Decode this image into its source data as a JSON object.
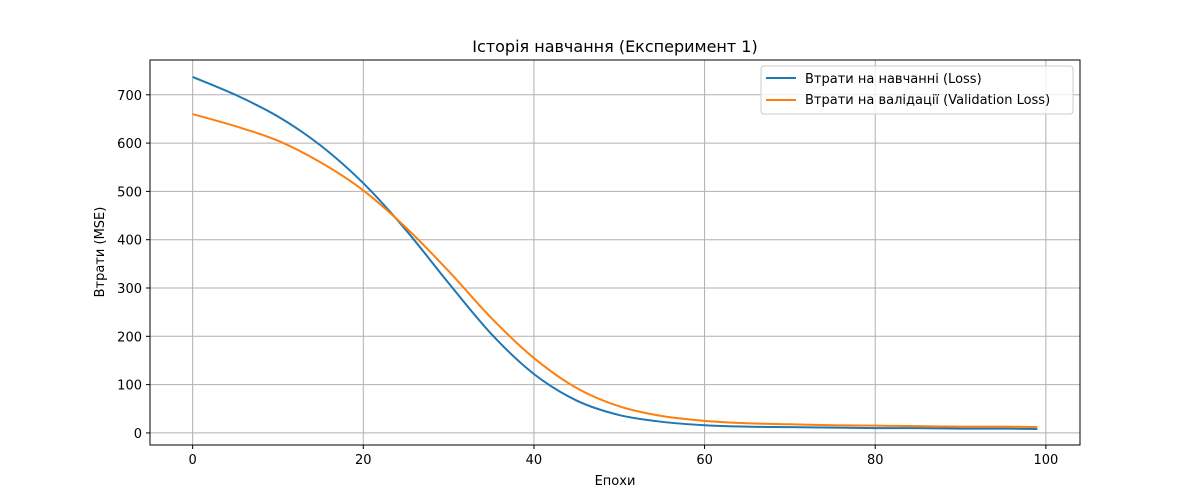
{
  "chart_data": {
    "type": "line",
    "title": "Історія навчання (Експеримент 1)",
    "xlabel": "Епохи",
    "ylabel": "Втрати (MSE)",
    "xlim": [
      -5,
      104
    ],
    "ylim": [
      -25,
      772
    ],
    "xticks": [
      0,
      20,
      40,
      60,
      80,
      100
    ],
    "yticks": [
      0,
      100,
      200,
      300,
      400,
      500,
      600,
      700
    ],
    "grid": true,
    "legend_position": "top-right",
    "x": [
      0,
      5,
      10,
      15,
      20,
      25,
      30,
      35,
      40,
      45,
      50,
      55,
      60,
      65,
      70,
      75,
      80,
      85,
      90,
      95,
      99
    ],
    "series": [
      {
        "name": "Втрати на навчанні (Loss)",
        "color": "#1f77b4",
        "values": [
          737,
          700,
          655,
          595,
          517,
          420,
          310,
          205,
          122,
          67,
          37,
          23,
          16,
          13,
          12,
          11,
          10,
          10,
          9,
          9,
          8
        ]
      },
      {
        "name": "Втрати на валідації (Validation Loss)",
        "color": "#ff7f0e",
        "values": [
          660,
          635,
          605,
          560,
          502,
          425,
          335,
          238,
          155,
          93,
          55,
          35,
          25,
          20,
          18,
          16,
          15,
          14,
          13,
          13,
          12
        ]
      }
    ]
  }
}
